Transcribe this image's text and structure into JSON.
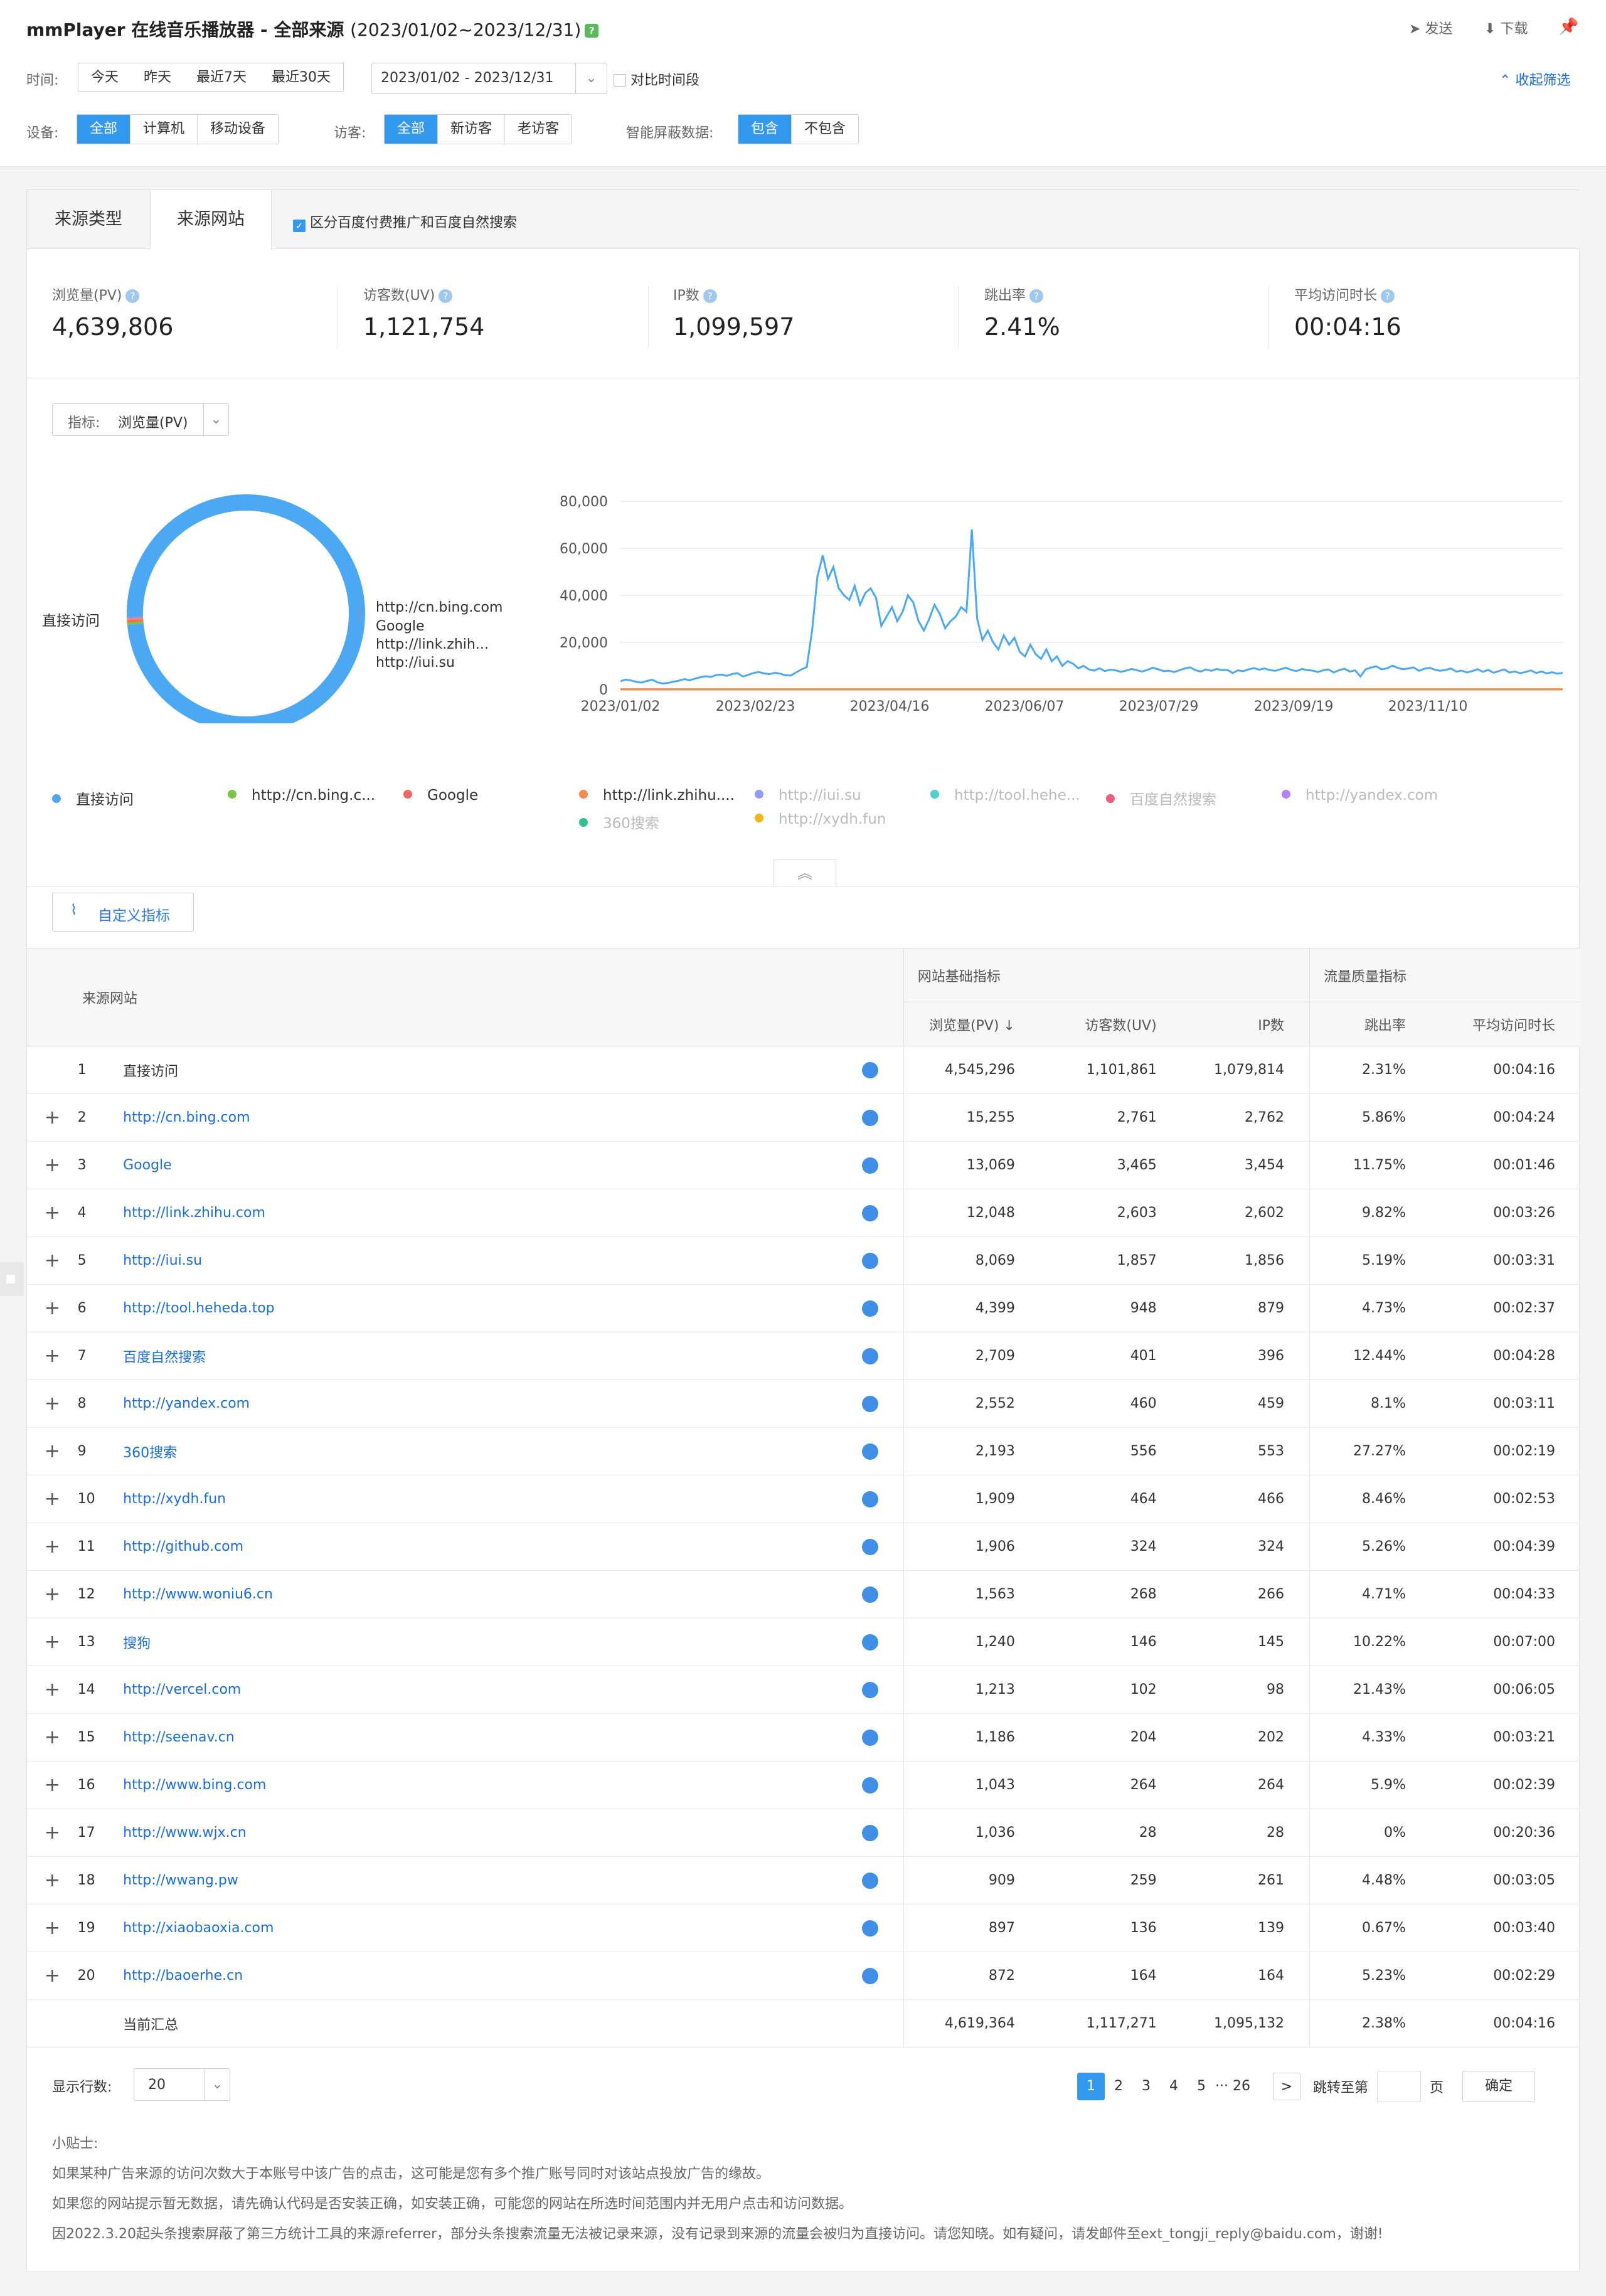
{
  "header": {
    "title": "mmPlayer 在线音乐播放器 - 全部来源",
    "date_range": "(2023/01/02~2023/12/31)",
    "help_icon": "?",
    "send": "发送",
    "download": "下载",
    "collapse": "收起筛选"
  },
  "filters": {
    "time_label": "时间:",
    "time_options": [
      "今天",
      "昨天",
      "最近7天",
      "最近30天"
    ],
    "date_value": "2023/01/02 - 2023/12/31",
    "compare": "对比时间段",
    "device_label": "设备:",
    "device_options": [
      "全部",
      "计算机",
      "移动设备"
    ],
    "visitor_label": "访客:",
    "visitor_options": [
      "全部",
      "新访客",
      "老访客"
    ],
    "shield_label": "智能屏蔽数据:",
    "shield_options": [
      "包含",
      "不包含"
    ]
  },
  "tabs": {
    "source_type": "来源类型",
    "source_site": "来源网站",
    "checkbox": "区分百度付费推广和百度自然搜索"
  },
  "metrics": [
    {
      "name": "浏览量(PV)",
      "value": "4,639,806"
    },
    {
      "name": "访客数(UV)",
      "value": "1,121,754"
    },
    {
      "name": "IP数",
      "value": "1,099,597"
    },
    {
      "name": "跳出率",
      "value": "2.41%"
    },
    {
      "name": "平均访问时长",
      "value": "00:04:16"
    }
  ],
  "indicator": {
    "label": "指标:",
    "value": "浏览量(PV)"
  },
  "pie": {
    "labels": [
      "直接访问",
      "http://cn.bing.com",
      "Google",
      "http://link.zhih...",
      "http://iui.su"
    ]
  },
  "chart_data": [
    {
      "type": "pie",
      "slices": [
        {
          "name": "直接访问",
          "value": 4545296
        },
        {
          "name": "http://cn.bing.com",
          "value": 15255
        },
        {
          "name": "Google",
          "value": 13069
        },
        {
          "name": "http://link.zhihu.com",
          "value": 12048
        },
        {
          "name": "http://iui.su",
          "value": 8069
        }
      ],
      "colors": [
        "#4da8f3",
        "#7cc243",
        "#f26666",
        "#f7894a",
        "#9b8ee8"
      ]
    },
    {
      "type": "line",
      "x_ticks": [
        "2023/01/02",
        "2023/02/23",
        "2023/04/16",
        "2023/06/07",
        "2023/07/29",
        "2023/09/19",
        "2023/11/10"
      ],
      "ylim": [
        0,
        80000
      ],
      "y_ticks": [
        "0",
        "20,000",
        "40,000",
        "60,000",
        "80,000"
      ],
      "grid": true,
      "series": [
        {
          "name": "直接访问",
          "color": "#4da8f3",
          "values": [
            3500,
            4200,
            3800,
            3200,
            2900,
            3600,
            4100,
            3000,
            2500,
            2800,
            3300,
            3700,
            4400,
            3900,
            4600,
            5200,
            5600,
            5300,
            6100,
            6300,
            5800,
            6600,
            6900,
            5500,
            6200,
            7000,
            7400,
            6800,
            6500,
            7100,
            6700,
            6000,
            5900,
            7200,
            8500,
            9500,
            25000,
            48000,
            57000,
            47000,
            52000,
            43000,
            40000,
            38000,
            44000,
            36000,
            41000,
            43000,
            39000,
            27000,
            31000,
            35000,
            29000,
            33000,
            40000,
            37000,
            29000,
            25000,
            30000,
            36000,
            32000,
            26000,
            29000,
            31000,
            35000,
            33000,
            68000,
            30000,
            21000,
            25000,
            20000,
            17000,
            23000,
            19000,
            22000,
            16000,
            14000,
            19000,
            15000,
            13000,
            17000,
            12000,
            14000,
            10000,
            12000,
            11000,
            9000,
            10000,
            8500,
            8000,
            9000,
            7800,
            8400,
            8100,
            7500,
            8000,
            8700,
            8200,
            7600,
            8300,
            9200,
            8600,
            7800,
            8000,
            7400,
            8100,
            8900,
            9400,
            8200,
            7600,
            8500,
            7900,
            8700,
            8200,
            8300,
            7000,
            8100,
            7800,
            8500,
            9100,
            8400,
            8900,
            8200,
            7900,
            8600,
            9200,
            8300,
            7800,
            8700,
            8200,
            8000,
            7400,
            8100,
            8500,
            7200,
            8200,
            8800,
            7600,
            8100,
            5500,
            8600,
            9300,
            9800,
            8500,
            9000,
            10100,
            9200,
            8600,
            8900,
            9400,
            7900,
            8800,
            9200,
            8400,
            7900,
            8300,
            8900,
            7600,
            8000,
            7200,
            7800,
            8600,
            7500,
            8300,
            7100,
            7800,
            8500,
            7200,
            7600,
            6900,
            7400,
            8100,
            7000,
            7600,
            6800,
            7300,
            6700,
            7000
          ]
        },
        {
          "name": "http://cn.bing.com",
          "color": "#7cc243",
          "values": [
            42,
            45,
            40,
            44
          ]
        },
        {
          "name": "Google",
          "color": "#f26666",
          "values": [
            36,
            38,
            35,
            37
          ]
        },
        {
          "name": "http://link.zhihu.com",
          "color": "#f7894a",
          "values": [
            33,
            34,
            32,
            35
          ]
        }
      ]
    }
  ],
  "line_legend": [
    {
      "name": "直接访问",
      "color": "#4da8f3",
      "active": true
    },
    {
      "name": "http://cn.bing.c...",
      "color": "#7cc243",
      "active": true
    },
    {
      "name": "Google",
      "color": "#f26666",
      "active": true
    },
    {
      "name": "http://link.zhihu....",
      "color": "#f7894a",
      "active": true
    },
    {
      "name": "http://iui.su",
      "color": "#8f9ef0",
      "active": false
    },
    {
      "name": "http://tool.hehe...",
      "color": "#4cd1cb",
      "active": false
    },
    {
      "name": "百度自然搜索",
      "color": "#f05d7a",
      "active": false
    },
    {
      "name": "http://yandex.com",
      "color": "#b083ef",
      "active": false
    },
    {
      "name": "360搜索",
      "color": "#33c08c",
      "active": false
    },
    {
      "name": "http://xydh.fun",
      "color": "#f3b51f",
      "active": false
    }
  ],
  "custom_btn": "自定义指标",
  "table": {
    "col_source": "来源网站",
    "group_basic": "网站基础指标",
    "group_quality": "流量质量指标",
    "cols": [
      "浏览量(PV)",
      "访客数(UV)",
      "IP数",
      "跳出率",
      "平均访问时长"
    ],
    "rows": [
      {
        "n": "1",
        "site": "直接访问",
        "link": false,
        "plus": false,
        "pv": "4,545,296",
        "uv": "1,101,861",
        "ip": "1,079,814",
        "br": "2.31%",
        "dur": "00:04:16"
      },
      {
        "n": "2",
        "site": "http://cn.bing.com",
        "link": true,
        "plus": true,
        "pv": "15,255",
        "uv": "2,761",
        "ip": "2,762",
        "br": "5.86%",
        "dur": "00:04:24"
      },
      {
        "n": "3",
        "site": "Google",
        "link": true,
        "plus": true,
        "pv": "13,069",
        "uv": "3,465",
        "ip": "3,454",
        "br": "11.75%",
        "dur": "00:01:46"
      },
      {
        "n": "4",
        "site": "http://link.zhihu.com",
        "link": true,
        "plus": true,
        "pv": "12,048",
        "uv": "2,603",
        "ip": "2,602",
        "br": "9.82%",
        "dur": "00:03:26"
      },
      {
        "n": "5",
        "site": "http://iui.su",
        "link": true,
        "plus": true,
        "pv": "8,069",
        "uv": "1,857",
        "ip": "1,856",
        "br": "5.19%",
        "dur": "00:03:31"
      },
      {
        "n": "6",
        "site": "http://tool.heheda.top",
        "link": true,
        "plus": true,
        "pv": "4,399",
        "uv": "948",
        "ip": "879",
        "br": "4.73%",
        "dur": "00:02:37"
      },
      {
        "n": "7",
        "site": "百度自然搜索",
        "link": true,
        "plus": true,
        "pv": "2,709",
        "uv": "401",
        "ip": "396",
        "br": "12.44%",
        "dur": "00:04:28"
      },
      {
        "n": "8",
        "site": "http://yandex.com",
        "link": true,
        "plus": true,
        "pv": "2,552",
        "uv": "460",
        "ip": "459",
        "br": "8.1%",
        "dur": "00:03:11"
      },
      {
        "n": "9",
        "site": "360搜索",
        "link": true,
        "plus": true,
        "pv": "2,193",
        "uv": "556",
        "ip": "553",
        "br": "27.27%",
        "dur": "00:02:19"
      },
      {
        "n": "10",
        "site": "http://xydh.fun",
        "link": true,
        "plus": true,
        "pv": "1,909",
        "uv": "464",
        "ip": "466",
        "br": "8.46%",
        "dur": "00:02:53"
      },
      {
        "n": "11",
        "site": "http://github.com",
        "link": true,
        "plus": true,
        "pv": "1,906",
        "uv": "324",
        "ip": "324",
        "br": "5.26%",
        "dur": "00:04:39"
      },
      {
        "n": "12",
        "site": "http://www.woniu6.cn",
        "link": true,
        "plus": true,
        "pv": "1,563",
        "uv": "268",
        "ip": "266",
        "br": "4.71%",
        "dur": "00:04:33"
      },
      {
        "n": "13",
        "site": "搜狗",
        "link": true,
        "plus": true,
        "pv": "1,240",
        "uv": "146",
        "ip": "145",
        "br": "10.22%",
        "dur": "00:07:00"
      },
      {
        "n": "14",
        "site": "http://vercel.com",
        "link": true,
        "plus": true,
        "pv": "1,213",
        "uv": "102",
        "ip": "98",
        "br": "21.43%",
        "dur": "00:06:05"
      },
      {
        "n": "15",
        "site": "http://seenav.cn",
        "link": true,
        "plus": true,
        "pv": "1,186",
        "uv": "204",
        "ip": "202",
        "br": "4.33%",
        "dur": "00:03:21"
      },
      {
        "n": "16",
        "site": "http://www.bing.com",
        "link": true,
        "plus": true,
        "pv": "1,043",
        "uv": "264",
        "ip": "264",
        "br": "5.9%",
        "dur": "00:02:39"
      },
      {
        "n": "17",
        "site": "http://www.wjx.cn",
        "link": true,
        "plus": true,
        "pv": "1,036",
        "uv": "28",
        "ip": "28",
        "br": "0%",
        "dur": "00:20:36"
      },
      {
        "n": "18",
        "site": "http://wwang.pw",
        "link": true,
        "plus": true,
        "pv": "909",
        "uv": "259",
        "ip": "261",
        "br": "4.48%",
        "dur": "00:03:05"
      },
      {
        "n": "19",
        "site": "http://xiaobaoxia.com",
        "link": true,
        "plus": true,
        "pv": "897",
        "uv": "136",
        "ip": "139",
        "br": "0.67%",
        "dur": "00:03:40"
      },
      {
        "n": "20",
        "site": "http://baoerhe.cn",
        "link": true,
        "plus": true,
        "pv": "872",
        "uv": "164",
        "ip": "164",
        "br": "5.23%",
        "dur": "00:02:29"
      }
    ],
    "total": {
      "label": "当前汇总",
      "pv": "4,619,364",
      "uv": "1,117,271",
      "ip": "1,095,132",
      "br": "2.38%",
      "dur": "00:04:16"
    }
  },
  "footer": {
    "rows_label": "显示行数:",
    "rows_value": "20",
    "pages": [
      "1",
      "2",
      "3",
      "4",
      "5"
    ],
    "ellipsis": "···",
    "last_page": "26",
    "next": ">",
    "jump_label": "跳转至第",
    "page_unit": "页",
    "confirm": "确定"
  },
  "tips": {
    "title": "小贴士:",
    "lines": [
      "如果某种广告来源的访问次数大于本账号中该广告的点击，这可能是您有多个推广账号同时对该站点投放广告的缘故。",
      "如果您的网站提示暂无数据，请先确认代码是否安装正确，如安装正确，可能您的网站在所选时间范围内并无用户点击和访问数据。",
      "因2022.3.20起头条搜索屏蔽了第三方统计工具的来源referrer，部分头条搜索流量无法被记录来源，没有记录到来源的流量会被归为直接访问。请您知晓。如有疑问，请发邮件至ext_tongji_reply@baidu.com，谢谢!"
    ]
  }
}
